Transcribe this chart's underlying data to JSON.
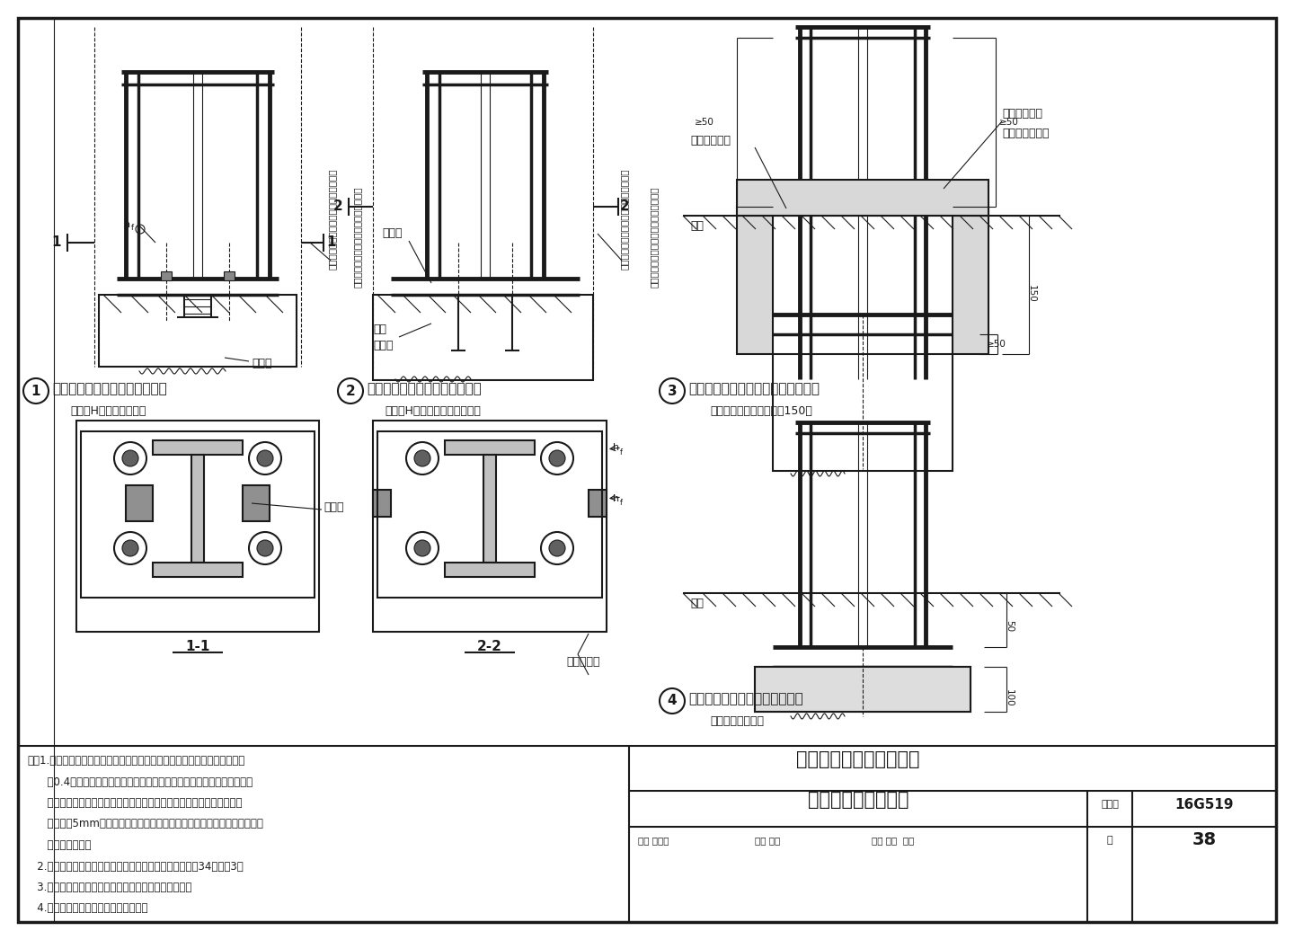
{
  "bg_color": "#ffffff",
  "line_color": "#1a1a1a",
  "page_title_line1": "外露式柱脚抗剪键的设置",
  "page_title_line2": "及其柱脚的防护措施",
  "atlas_number": "16G519",
  "page_number": "38",
  "label1_main": "外露式柱脚抗剪键的设置（一）",
  "label1_sub": "（可用H型截面或方钢）",
  "label2_main": "外露式柱脚抗剪键的设置（二）",
  "label2_sub": "（可用H型、槽形截面或角钢）",
  "label3_main": "外露式柱脚在地面以下时的防护措施",
  "label3_sub": "（包裹的混凝土高出地面150）",
  "label4_main": "外露式柱脚在室外时的防护措施",
  "label4_sub": "（柱脚高出地面）",
  "section1_label": "1-1",
  "section2_label": "2-2",
  "note_line1": "注：1.外露式柱脚底部的剪力可由底板与混凝土之间的摩擦力传递，摩擦系数",
  "note_line2": "      取0.4。当剪力大于地板下的摩擦力时，应设置抗剪键，由抗剪键承受全",
  "note_line3": "      部剪力；也可由锚栓抗抗全部剪力，此时底板上的锚栓直径不应大于锚",
  "note_line4": "      栓直径加5mm，且锚栓垫片下应设置盖板，盖板与柱底板焊接，并计算焊",
  "note_line5": "      缝的抗剪强度。",
  "note_line6": "   2.基础顶面和柱脚底板之间须二次浇灌混凝土的要求同第34页的注3。",
  "note_line7": "   3.设置抗剪键时，锚栓布置应考虑避免与抗剪键碰撞。",
  "note_line8": "   4.无收缩二次灌浆层应保证浇灌密实。",
  "titleblock_review": "审核 都银泉",
  "titleblock_check": "校对 王喆",
  "titleblock_design": "设计 刘岩  刘岺",
  "titleblock_atlas": "图集号",
  "titleblock_page": "页"
}
